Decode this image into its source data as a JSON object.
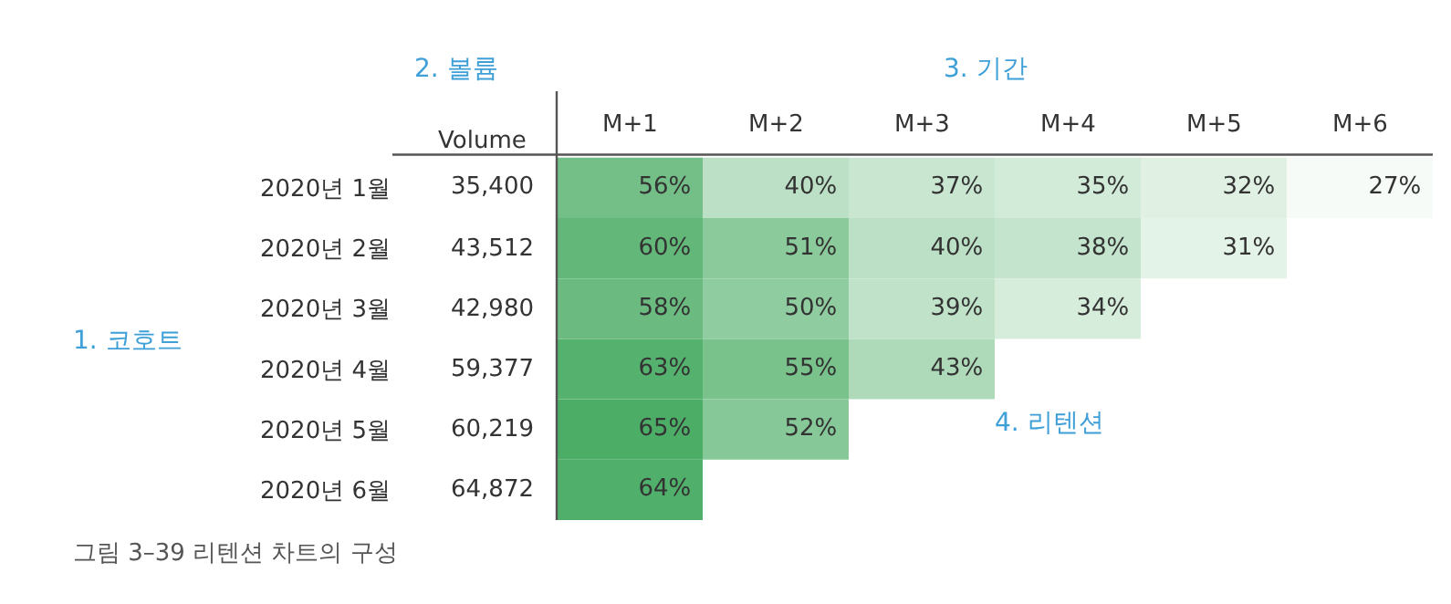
{
  "chart_data": {
    "type": "heatmap",
    "categories": [
      "M+1",
      "M+2",
      "M+3",
      "M+4",
      "M+5",
      "M+6"
    ],
    "y_categories": [
      "2020년 1월",
      "2020년 2월",
      "2020년 3월",
      "2020년 4월",
      "2020년 5월",
      "2020년 6월"
    ],
    "y2_categories": [
      "35,400",
      "43,512",
      "42,980",
      "59,377",
      "60,219",
      "64,872"
    ],
    "cells": [
      [
        56,
        40,
        37,
        35,
        32,
        27
      ],
      [
        60,
        51,
        40,
        38,
        31,
        null
      ],
      [
        58,
        50,
        39,
        34,
        null,
        null
      ],
      [
        63,
        55,
        43,
        null,
        null,
        null
      ],
      [
        65,
        52,
        null,
        null,
        null,
        null
      ],
      [
        64,
        null,
        null,
        null,
        null,
        null
      ]
    ],
    "cell_labels": [
      [
        "56%",
        "40%",
        "37%",
        "35%",
        "32%",
        "27%"
      ],
      [
        "60%",
        "51%",
        "40%",
        "38%",
        "31%",
        null
      ],
      [
        "58%",
        "50%",
        "39%",
        "34%",
        null,
        null
      ],
      [
        "63%",
        "55%",
        "43%",
        null,
        null,
        null
      ],
      [
        "65%",
        "52%",
        null,
        null,
        null,
        null
      ],
      [
        "64%",
        null,
        null,
        null,
        null,
        null
      ]
    ],
    "annotations": [
      "Volume",
      "2. 볼륨",
      "3. 기간",
      "1. 코호트",
      "4. 리텐션",
      "그림 3–39 리텐션 차트의 구성"
    ]
  }
}
